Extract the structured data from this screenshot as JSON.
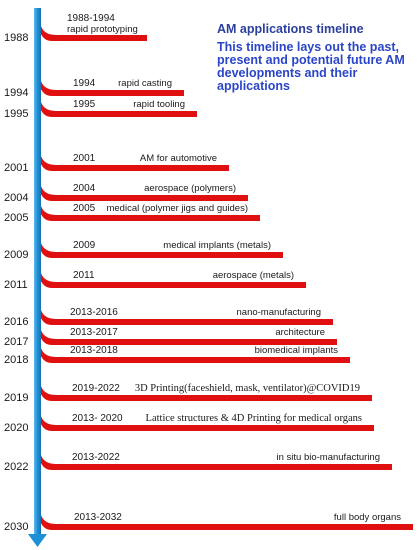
{
  "header": {
    "title": "AM applications timeline",
    "description": "This timeline lays out the past, present and potential future AM developments and their applications"
  },
  "colors": {
    "axis": "#1e90d6",
    "ribbon": "#e01010",
    "title": "#2b3f9e",
    "description": "#2a45c8"
  },
  "events": [
    {
      "year": "1988",
      "period": "1988-1994",
      "label": "rapid prototyping"
    },
    {
      "year": "1994",
      "period": "1994",
      "label": "rapid casting"
    },
    {
      "year": "1995",
      "period": "1995",
      "label": "rapid tooling"
    },
    {
      "year": "2001",
      "period": "2001",
      "label": "AM for automotive"
    },
    {
      "year": "2004",
      "period": "2004",
      "label": "aerospace (polymers)"
    },
    {
      "year": "2005",
      "period": "2005",
      "label": "medical (polymer jigs and guides)"
    },
    {
      "year": "2009",
      "period": "2009",
      "label": "medical implants (metals)"
    },
    {
      "year": "2011",
      "period": "2011",
      "label": "aerospace (metals)"
    },
    {
      "year": "2016",
      "period": "2013-2016",
      "label": "nano-manufacturing"
    },
    {
      "year": "2017",
      "period": "2013-2017",
      "label": "architecture"
    },
    {
      "year": "2018",
      "period": "2013-2018",
      "label": "biomedical implants"
    },
    {
      "year": "2019",
      "period": "2019-2022",
      "label": "3D Printing(faceshield, mask, ventilator)@COVID19"
    },
    {
      "year": "2020",
      "period": "2013- 2020",
      "label": "Lattice structures & 4D Printing for medical organs"
    },
    {
      "year": "2022",
      "period": "2013-2022",
      "label": "in situ bio-manufacturing"
    },
    {
      "year": "2030",
      "period": "2013-2032",
      "label": "full body organs"
    }
  ]
}
